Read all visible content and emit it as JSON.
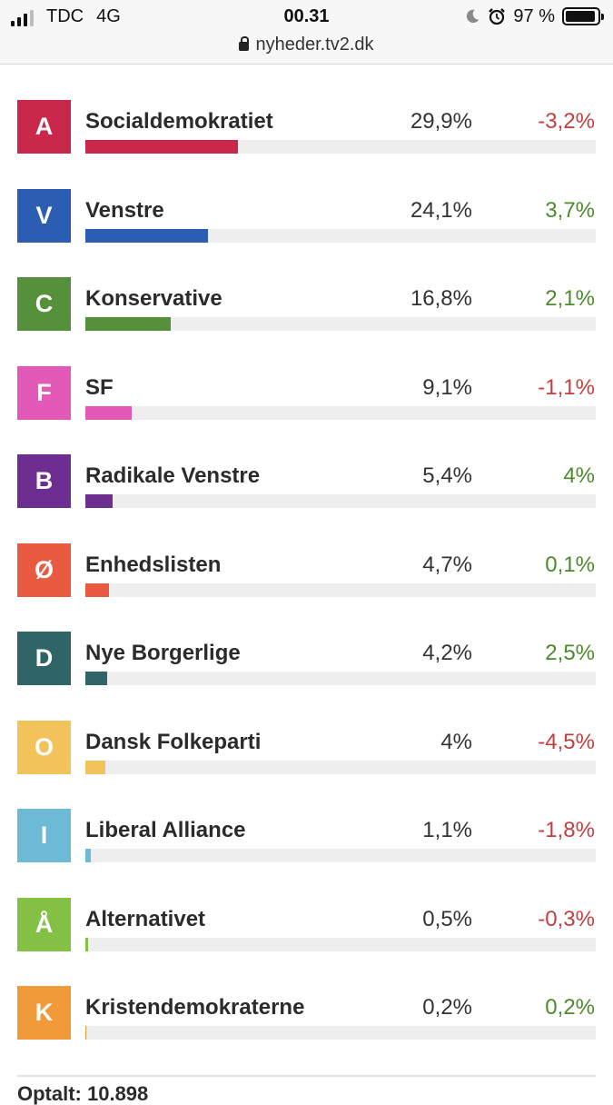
{
  "status_bar": {
    "carrier": "TDC",
    "network": "4G",
    "time": "00.31",
    "battery": "97 %",
    "url": "nyheder.tv2.dk"
  },
  "colors": {
    "positive": "#4c8a2c",
    "negative": "#c43e3e"
  },
  "parties": [
    {
      "letter": "A",
      "name": "Socialdemokratiet",
      "percent": "29,9%",
      "change": "-3,2%",
      "value": 29.9,
      "direction": "down",
      "color": "#c9284a"
    },
    {
      "letter": "V",
      "name": "Venstre",
      "percent": "24,1%",
      "change": "3,7%",
      "value": 24.1,
      "direction": "up",
      "color": "#2b5eb2"
    },
    {
      "letter": "C",
      "name": "Konservative",
      "percent": "16,8%",
      "change": "2,1%",
      "value": 16.8,
      "direction": "up",
      "color": "#55913a"
    },
    {
      "letter": "F",
      "name": "SF",
      "percent": "9,1%",
      "change": "-1,1%",
      "value": 9.1,
      "direction": "down",
      "color": "#e259b7"
    },
    {
      "letter": "B",
      "name": "Radikale Venstre",
      "percent": "5,4%",
      "change": "4%",
      "value": 5.4,
      "direction": "up",
      "color": "#6e2d91"
    },
    {
      "letter": "Ø",
      "name": "Enhedslisten",
      "percent": "4,7%",
      "change": "0,1%",
      "value": 4.7,
      "direction": "up",
      "color": "#e85b40"
    },
    {
      "letter": "D",
      "name": "Nye Borgerlige",
      "percent": "4,2%",
      "change": "2,5%",
      "value": 4.2,
      "direction": "up",
      "color": "#2f6566"
    },
    {
      "letter": "O",
      "name": "Dansk Folkeparti",
      "percent": "4%",
      "change": "-4,5%",
      "value": 4.0,
      "direction": "down",
      "color": "#f2c25b"
    },
    {
      "letter": "I",
      "name": "Liberal Alliance",
      "percent": "1,1%",
      "change": "-1,8%",
      "value": 1.1,
      "direction": "down",
      "color": "#6cbad5"
    },
    {
      "letter": "Å",
      "name": "Alternativet",
      "percent": "0,5%",
      "change": "-0,3%",
      "value": 0.5,
      "direction": "down",
      "color": "#84c044"
    },
    {
      "letter": "K",
      "name": "Kristendemokraterne",
      "percent": "0,2%",
      "change": "0,2%",
      "value": 0.2,
      "direction": "up",
      "color": "#f09a3a"
    }
  ],
  "footer": {
    "text": "Optalt: 10.898"
  }
}
